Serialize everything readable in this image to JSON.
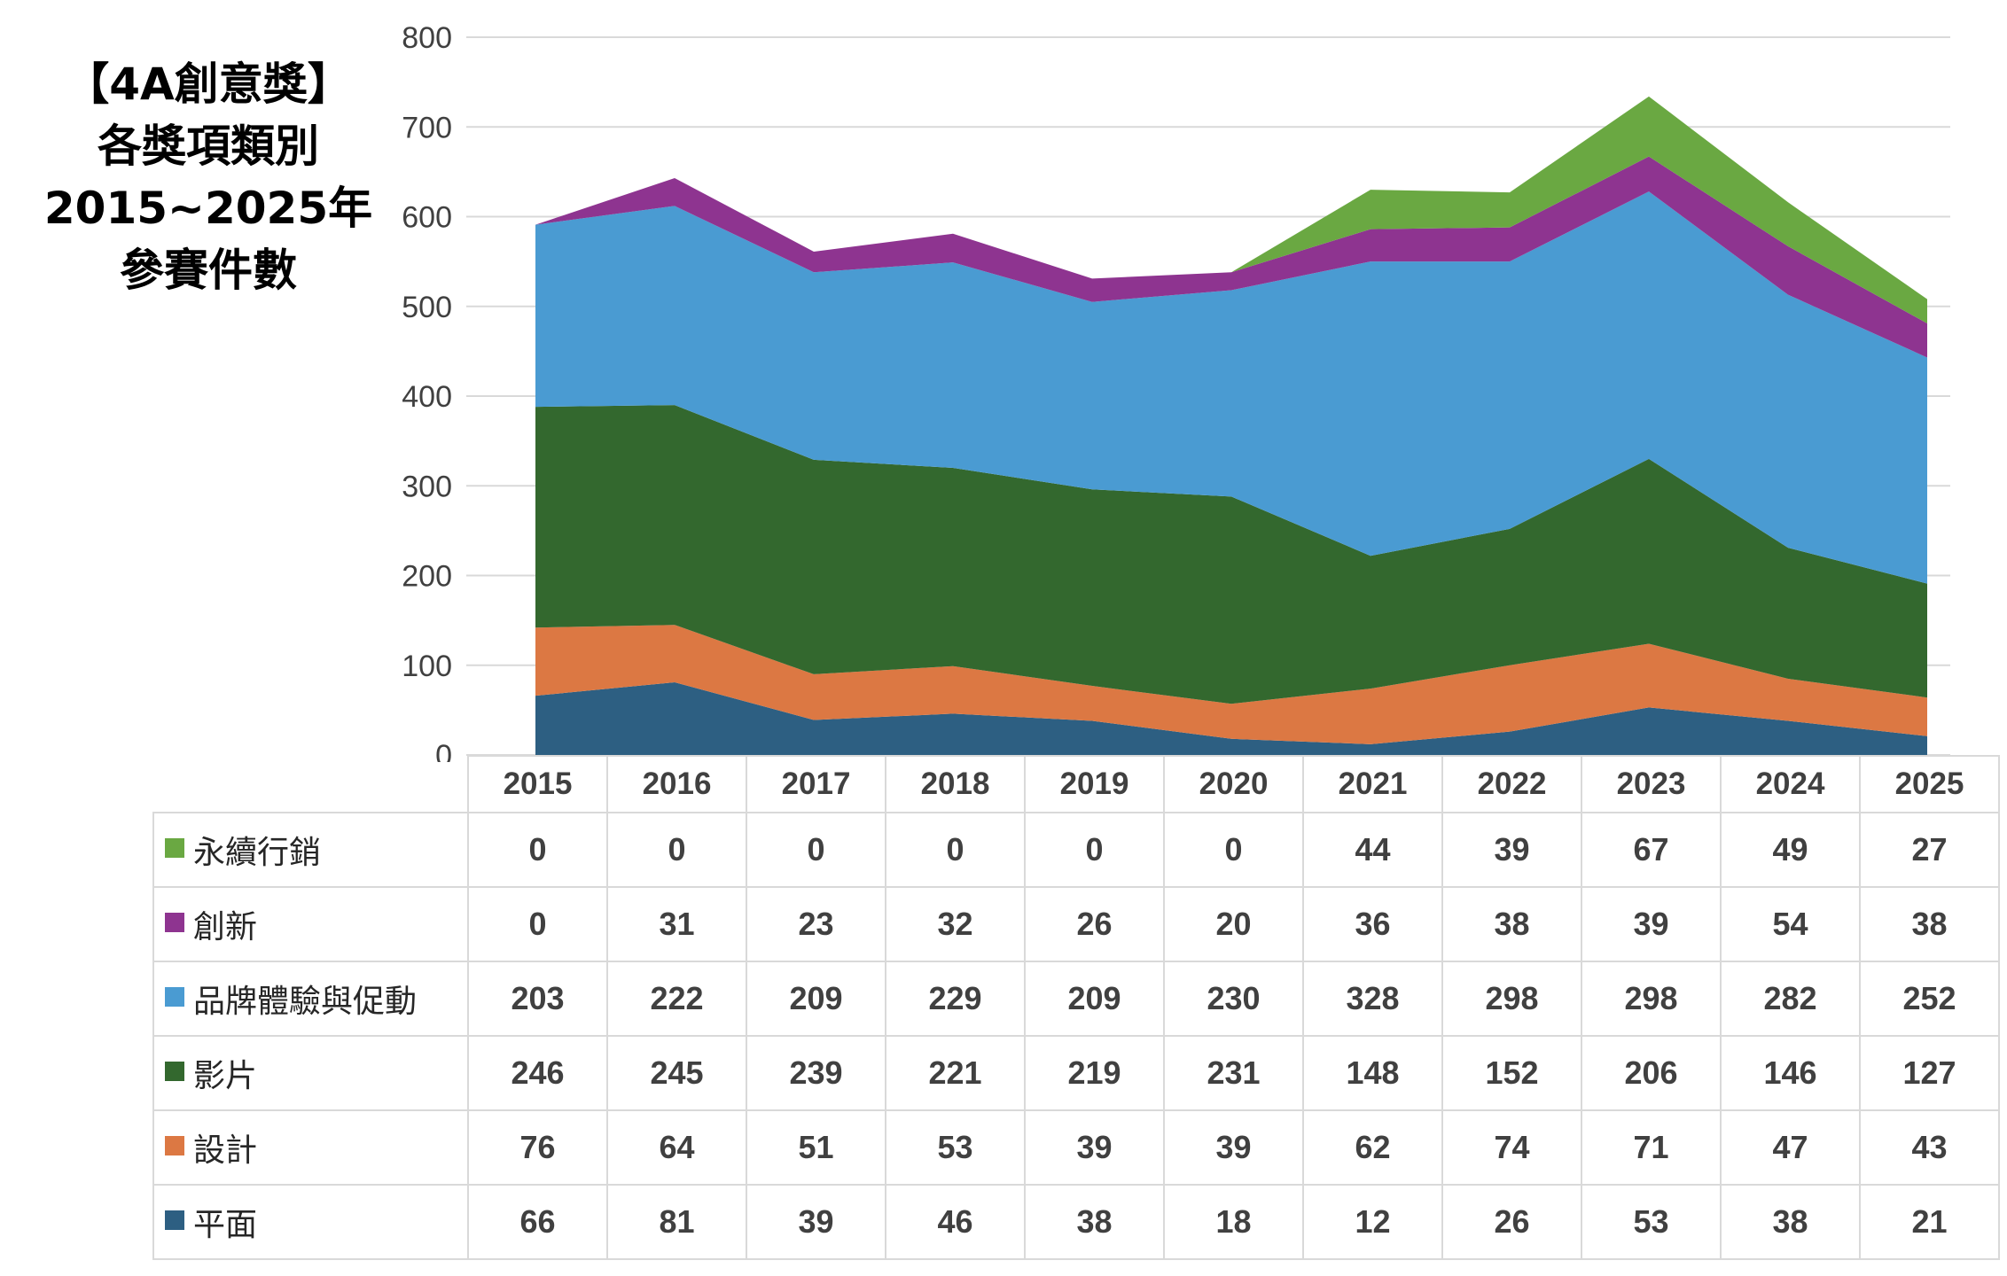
{
  "title_lines": [
    "【4A創意獎】",
    "各獎項類別",
    "2015~2025年",
    "參賽件數"
  ],
  "chart_data": {
    "type": "area",
    "stacked": true,
    "title": "【4A創意獎】各獎項類別2015~2025年參賽件數",
    "xlabel": "",
    "ylabel": "",
    "ylim": [
      0,
      800
    ],
    "yticks": [
      "0",
      "100",
      "200",
      "300",
      "400",
      "500",
      "600",
      "700",
      "800"
    ],
    "grid": true,
    "legend": "data-table",
    "categories": [
      "2015",
      "2016",
      "2017",
      "2018",
      "2019",
      "2020",
      "2021",
      "2022",
      "2023",
      "2024",
      "2025"
    ],
    "series": [
      {
        "name": "永續行銷",
        "color": "#6aa842",
        "values": [
          0,
          0,
          0,
          0,
          0,
          0,
          44,
          39,
          67,
          49,
          27
        ]
      },
      {
        "name": "創新",
        "color": "#8e3490",
        "values": [
          0,
          31,
          23,
          32,
          26,
          20,
          36,
          38,
          39,
          54,
          38
        ]
      },
      {
        "name": "品牌體驗與促動",
        "color": "#4a9bd2",
        "values": [
          203,
          222,
          209,
          229,
          209,
          230,
          328,
          298,
          298,
          282,
          252
        ]
      },
      {
        "name": "影片",
        "color": "#33682e",
        "values": [
          246,
          245,
          239,
          221,
          219,
          231,
          148,
          152,
          206,
          146,
          127
        ]
      },
      {
        "name": "設計",
        "color": "#dc7843",
        "values": [
          76,
          64,
          51,
          53,
          39,
          39,
          62,
          74,
          71,
          47,
          43
        ]
      },
      {
        "name": "平面",
        "color": "#2d5f82",
        "values": [
          66,
          81,
          39,
          46,
          38,
          18,
          12,
          26,
          53,
          38,
          21
        ]
      }
    ]
  }
}
